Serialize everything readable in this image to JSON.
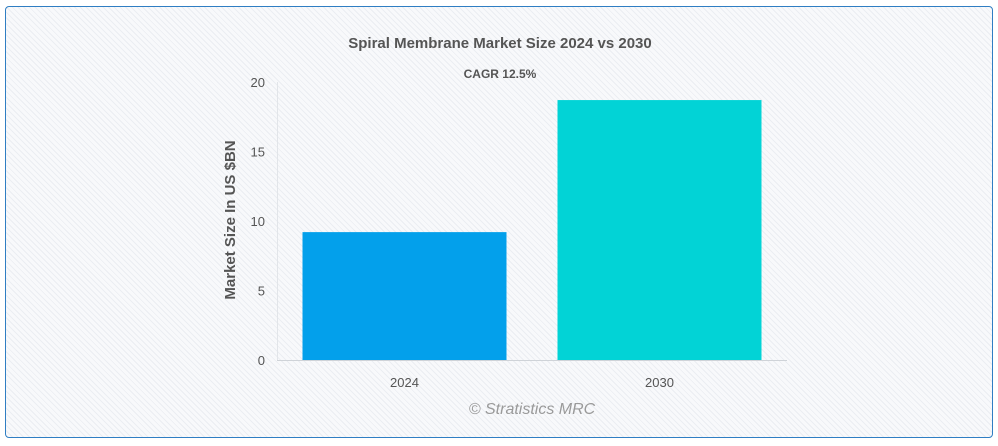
{
  "chart_data": {
    "type": "bar",
    "title": "Spiral Membrane Market Size 2024 vs 2030",
    "subtitle": "CAGR 12.5%",
    "categories": [
      "2024",
      "2030"
    ],
    "values": [
      9.2,
      18.7
    ],
    "colors": [
      "#03a0eb",
      "#02d3d6"
    ],
    "xlabel": "",
    "ylabel": "Market Size In US $BN",
    "ylim": [
      0,
      20
    ],
    "yticks": [
      0,
      5,
      10,
      15,
      20
    ],
    "grid": false,
    "legend": "none"
  },
  "credit": "© Stratistics MRC"
}
